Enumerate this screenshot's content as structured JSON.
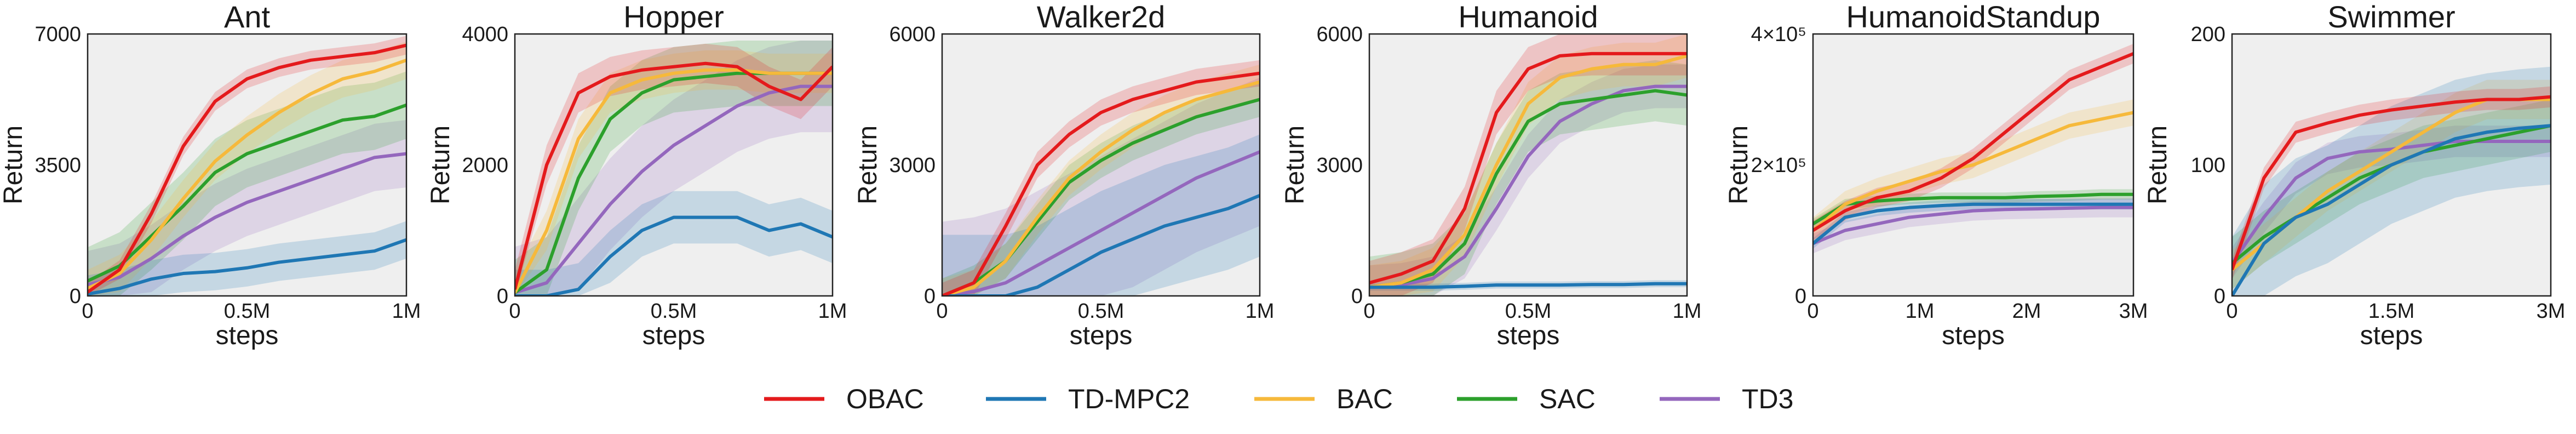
{
  "legend": [
    {
      "name": "OBAC",
      "color": "#e41a1c"
    },
    {
      "name": "TD-MPC2",
      "color": "#1f77b4"
    },
    {
      "name": "BAC",
      "color": "#f6b93b"
    },
    {
      "name": "SAC",
      "color": "#2ca02c"
    },
    {
      "name": "TD3",
      "color": "#9467bd"
    }
  ],
  "chart_data": [
    {
      "type": "line",
      "title": "Ant",
      "xlabel": "steps",
      "ylabel": "Return",
      "xlim": [
        0,
        1
      ],
      "ylim": [
        0,
        7000
      ],
      "xticks": [
        0,
        0.5,
        1
      ],
      "xticklabels": [
        "0",
        "0.5M",
        "1M"
      ],
      "yticks": [
        0,
        3500,
        7000
      ],
      "yticklabels": [
        "0",
        "3500",
        "7000"
      ],
      "x": [
        0,
        0.1,
        0.2,
        0.3,
        0.4,
        0.5,
        0.6,
        0.7,
        0.8,
        0.9,
        1.0
      ],
      "series": [
        {
          "name": "OBAC",
          "values": [
            100,
            700,
            2200,
            4000,
            5200,
            5800,
            6100,
            6300,
            6400,
            6500,
            6700
          ],
          "band": 250
        },
        {
          "name": "TD-MPC2",
          "values": [
            50,
            200,
            450,
            600,
            650,
            750,
            900,
            1000,
            1100,
            1200,
            1500
          ],
          "band": 500
        },
        {
          "name": "BAC",
          "values": [
            200,
            600,
            1500,
            2600,
            3600,
            4300,
            4900,
            5400,
            5800,
            6000,
            6300
          ],
          "band": 500
        },
        {
          "name": "SAC",
          "values": [
            400,
            800,
            1600,
            2400,
            3300,
            3800,
            4100,
            4400,
            4700,
            4800,
            5100
          ],
          "band": 900
        },
        {
          "name": "TD3",
          "values": [
            300,
            500,
            1000,
            1600,
            2100,
            2500,
            2800,
            3100,
            3400,
            3700,
            3800
          ],
          "band": 900
        }
      ]
    },
    {
      "type": "line",
      "title": "Hopper",
      "xlabel": "steps",
      "ylabel": "Return",
      "xlim": [
        0,
        1
      ],
      "ylim": [
        0,
        4000
      ],
      "xticks": [
        0,
        0.5,
        1
      ],
      "xticklabels": [
        "0",
        "0.5M",
        "1M"
      ],
      "yticks": [
        0,
        2000,
        4000
      ],
      "yticklabels": [
        "0",
        "2000",
        "4000"
      ],
      "x": [
        0,
        0.1,
        0.2,
        0.3,
        0.4,
        0.5,
        0.6,
        0.7,
        0.8,
        0.9,
        1.0
      ],
      "series": [
        {
          "name": "OBAC",
          "values": [
            100,
            2000,
            3100,
            3350,
            3450,
            3500,
            3550,
            3500,
            3200,
            3000,
            3500
          ],
          "band": 300
        },
        {
          "name": "TD-MPC2",
          "values": [
            0,
            0,
            100,
            600,
            1000,
            1200,
            1200,
            1200,
            1000,
            1100,
            900
          ],
          "band": 400
        },
        {
          "name": "BAC",
          "values": [
            50,
            1000,
            2400,
            3100,
            3300,
            3400,
            3450,
            3450,
            3400,
            3400,
            3400
          ],
          "band": 300
        },
        {
          "name": "SAC",
          "values": [
            50,
            400,
            1800,
            2700,
            3100,
            3300,
            3350,
            3400,
            3400,
            3400,
            3400
          ],
          "band": 500
        },
        {
          "name": "TD3",
          "values": [
            50,
            200,
            800,
            1400,
            1900,
            2300,
            2600,
            2900,
            3100,
            3200,
            3200
          ],
          "band": 700
        }
      ]
    },
    {
      "type": "line",
      "title": "Walker2d",
      "xlabel": "steps",
      "ylabel": "Return",
      "xlim": [
        0,
        1
      ],
      "ylim": [
        0,
        6000
      ],
      "xticks": [
        0,
        0.5,
        1
      ],
      "xticklabels": [
        "0",
        "0.5M",
        "1M"
      ],
      "yticks": [
        0,
        3000,
        6000
      ],
      "yticklabels": [
        "0",
        "3000",
        "6000"
      ],
      "x": [
        0,
        0.1,
        0.2,
        0.3,
        0.4,
        0.5,
        0.6,
        0.7,
        0.8,
        0.9,
        1.0
      ],
      "series": [
        {
          "name": "OBAC",
          "values": [
            0,
            300,
            1600,
            3000,
            3700,
            4200,
            4500,
            4700,
            4900,
            5000,
            5100
          ],
          "band": 300
        },
        {
          "name": "TD-MPC2",
          "values": [
            0,
            0,
            0,
            200,
            600,
            1000,
            1300,
            1600,
            1800,
            2000,
            2300
          ],
          "band": 1400
        },
        {
          "name": "BAC",
          "values": [
            0,
            200,
            800,
            1800,
            2700,
            3300,
            3800,
            4200,
            4500,
            4700,
            4900
          ],
          "band": 400
        },
        {
          "name": "SAC",
          "values": [
            0,
            300,
            800,
            1700,
            2600,
            3100,
            3500,
            3800,
            4100,
            4300,
            4500
          ],
          "band": 400
        },
        {
          "name": "TD3",
          "values": [
            0,
            100,
            300,
            700,
            1100,
            1500,
            1900,
            2300,
            2700,
            3000,
            3300
          ],
          "band": 1700
        }
      ]
    },
    {
      "type": "line",
      "title": "Humanoid",
      "xlabel": "steps",
      "ylabel": "Return",
      "xlim": [
        0,
        1
      ],
      "ylim": [
        0,
        6000
      ],
      "xticks": [
        0,
        0.5,
        1
      ],
      "xticklabels": [
        "0",
        "0.5M",
        "1M"
      ],
      "yticks": [
        0,
        3000,
        6000
      ],
      "yticklabels": [
        "0",
        "3000",
        "6000"
      ],
      "x": [
        0,
        0.1,
        0.2,
        0.3,
        0.4,
        0.5,
        0.6,
        0.7,
        0.8,
        0.9,
        1.0
      ],
      "series": [
        {
          "name": "OBAC",
          "values": [
            300,
            500,
            800,
            2000,
            4200,
            5200,
            5500,
            5550,
            5550,
            5550,
            5550
          ],
          "band": 500
        },
        {
          "name": "TD-MPC2",
          "values": [
            200,
            200,
            200,
            220,
            250,
            250,
            250,
            260,
            260,
            280,
            280
          ],
          "band": 80
        },
        {
          "name": "BAC",
          "values": [
            200,
            300,
            600,
            1400,
            3000,
            4400,
            5000,
            5200,
            5300,
            5300,
            5500
          ],
          "band": 500
        },
        {
          "name": "SAC",
          "values": [
            200,
            300,
            500,
            1200,
            2800,
            4000,
            4400,
            4500,
            4600,
            4700,
            4600
          ],
          "band": 700
        },
        {
          "name": "TD3",
          "values": [
            200,
            250,
            400,
            900,
            2000,
            3200,
            4000,
            4400,
            4700,
            4800,
            4800
          ],
          "band": 500
        }
      ]
    },
    {
      "type": "line",
      "title": "HumanoidStandup",
      "xlabel": "steps",
      "ylabel": "Return",
      "xlim": [
        0,
        3
      ],
      "ylim": [
        0,
        400000
      ],
      "xticks": [
        0,
        1,
        2,
        3
      ],
      "xticklabels": [
        "0",
        "1M",
        "2M",
        "3M"
      ],
      "yticks": [
        0,
        200000,
        400000
      ],
      "yticklabels": [
        "0",
        "2×10⁵",
        "4×10⁵"
      ],
      "x": [
        0,
        0.3,
        0.6,
        0.9,
        1.2,
        1.5,
        1.8,
        2.1,
        2.4,
        2.7,
        3.0
      ],
      "series": [
        {
          "name": "OBAC",
          "values": [
            100000,
            130000,
            150000,
            160000,
            180000,
            210000,
            250000,
            290000,
            330000,
            350000,
            370000
          ],
          "band": 15000
        },
        {
          "name": "TD-MPC2",
          "values": [
            80000,
            120000,
            130000,
            135000,
            138000,
            140000,
            140000,
            140000,
            140000,
            140000,
            140000
          ],
          "band": 8000
        },
        {
          "name": "BAC",
          "values": [
            100000,
            140000,
            160000,
            175000,
            190000,
            200000,
            220000,
            240000,
            260000,
            270000,
            280000
          ],
          "band": 20000
        },
        {
          "name": "SAC",
          "values": [
            110000,
            140000,
            145000,
            148000,
            150000,
            150000,
            150000,
            152000,
            153000,
            155000,
            155000
          ],
          "band": 8000
        },
        {
          "name": "TD3",
          "values": [
            80000,
            100000,
            110000,
            120000,
            125000,
            130000,
            132000,
            133000,
            134000,
            135000,
            135000
          ],
          "band": 15000
        }
      ]
    },
    {
      "type": "line",
      "title": "Swimmer",
      "xlabel": "steps",
      "ylabel": "Return",
      "xlim": [
        0,
        3
      ],
      "ylim": [
        0,
        200
      ],
      "xticks": [
        0,
        1.5,
        3
      ],
      "xticklabels": [
        "0",
        "1.5M",
        "3M"
      ],
      "yticks": [
        0,
        100,
        200
      ],
      "yticklabels": [
        "0",
        "100",
        "200"
      ],
      "x": [
        0,
        0.3,
        0.6,
        0.9,
        1.2,
        1.5,
        1.8,
        2.1,
        2.4,
        2.7,
        3.0
      ],
      "series": [
        {
          "name": "OBAC",
          "values": [
            20,
            90,
            125,
            132,
            138,
            142,
            145,
            148,
            150,
            150,
            152
          ],
          "band": 8
        },
        {
          "name": "TD-MPC2",
          "values": [
            0,
            40,
            60,
            70,
            85,
            100,
            110,
            120,
            125,
            128,
            130
          ],
          "band": 45
        },
        {
          "name": "BAC",
          "values": [
            20,
            40,
            60,
            80,
            95,
            110,
            125,
            140,
            150,
            150,
            150
          ],
          "band": 15
        },
        {
          "name": "SAC",
          "values": [
            25,
            45,
            60,
            75,
            90,
            100,
            110,
            115,
            120,
            125,
            130
          ],
          "band": 20
        },
        {
          "name": "TD3",
          "values": [
            25,
            60,
            90,
            105,
            110,
            112,
            115,
            118,
            118,
            118,
            118
          ],
          "band": 12
        }
      ]
    }
  ]
}
